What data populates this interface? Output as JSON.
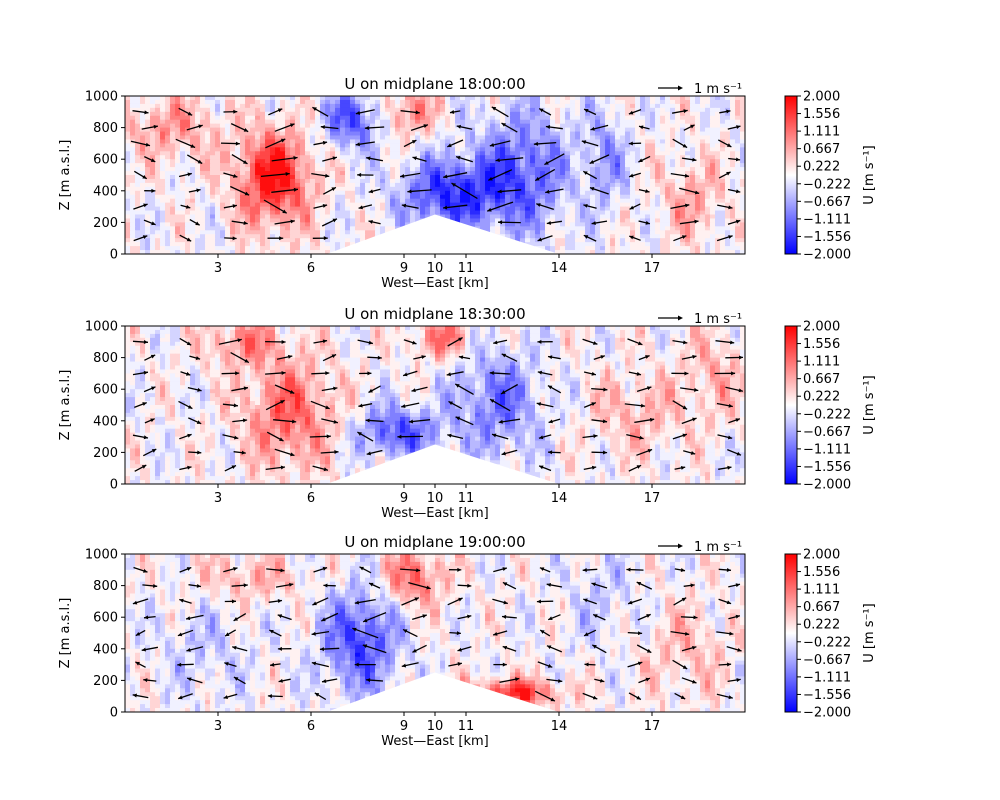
{
  "figure": {
    "colorbar": {
      "label": "U [m s⁻¹]",
      "ticks": [
        "2.000",
        "1.556",
        "1.111",
        "0.667",
        "0.222",
        "−0.222",
        "−0.667",
        "−1.111",
        "−1.556",
        "−2.000"
      ],
      "colors": {
        "negative": "#0000ff",
        "neutral": "#ffffff",
        "positive": "#ff0000"
      }
    },
    "quiver_key_label": "1 m s⁻¹"
  },
  "chart_data": [
    {
      "type": "heatmap",
      "title": "U on midplane 18:00:00",
      "xlabel": "West—East [km]",
      "ylabel": "Z [m a.s.l.]",
      "xlim": [
        0,
        20
      ],
      "ylim": [
        0,
        1000
      ],
      "xticks": [
        3,
        6,
        9,
        10,
        11,
        14,
        17
      ],
      "yticks": [
        0,
        200,
        400,
        600,
        800,
        1000
      ],
      "vlim": [
        -2,
        2
      ],
      "terrain_peak": {
        "x": 10,
        "z": 250,
        "from_x": 6.5,
        "to_x": 14
      },
      "anomalies": [
        {
          "x": 4.8,
          "z": 480,
          "rx": 1.2,
          "rz": 300,
          "u": 1.9
        },
        {
          "x": 1.5,
          "z": 800,
          "rx": 1.5,
          "rz": 200,
          "u": 0.8
        },
        {
          "x": 7.3,
          "z": 850,
          "rx": 0.9,
          "rz": 180,
          "u": -1.4
        },
        {
          "x": 10.5,
          "z": 380,
          "rx": 1.6,
          "rz": 220,
          "u": -1.6
        },
        {
          "x": 12.8,
          "z": 520,
          "rx": 1.5,
          "rz": 380,
          "u": -1.3
        },
        {
          "x": 15.5,
          "z": 600,
          "rx": 0.7,
          "rz": 300,
          "u": -0.8
        },
        {
          "x": 18.3,
          "z": 350,
          "rx": 1.0,
          "rz": 250,
          "u": 0.7
        },
        {
          "x": 9.2,
          "z": 900,
          "rx": 0.8,
          "rz": 150,
          "u": 1.0
        }
      ]
    },
    {
      "type": "heatmap",
      "title": "U on midplane 18:30:00",
      "xlabel": "West—East [km]",
      "ylabel": "Z [m a.s.l.]",
      "xlim": [
        0,
        20
      ],
      "ylim": [
        0,
        1000
      ],
      "xticks": [
        3,
        6,
        9,
        10,
        11,
        14,
        17
      ],
      "yticks": [
        0,
        200,
        400,
        600,
        800,
        1000
      ],
      "vlim": [
        -2,
        2
      ],
      "terrain_peak": {
        "x": 10,
        "z": 250,
        "from_x": 6.5,
        "to_x": 14
      },
      "anomalies": [
        {
          "x": 5.3,
          "z": 450,
          "rx": 1.5,
          "rz": 350,
          "u": 1.2
        },
        {
          "x": 3.8,
          "z": 900,
          "rx": 1.2,
          "rz": 150,
          "u": 0.9
        },
        {
          "x": 8.8,
          "z": 330,
          "rx": 1.3,
          "rz": 160,
          "u": -1.4
        },
        {
          "x": 12.0,
          "z": 520,
          "rx": 1.4,
          "rz": 330,
          "u": -1.1
        },
        {
          "x": 10.2,
          "z": 920,
          "rx": 0.9,
          "rz": 130,
          "u": 1.1
        },
        {
          "x": 16.5,
          "z": 450,
          "rx": 1.5,
          "rz": 250,
          "u": 0.6
        },
        {
          "x": 19.0,
          "z": 700,
          "rx": 1.0,
          "rz": 300,
          "u": 0.6
        }
      ]
    },
    {
      "type": "heatmap",
      "title": "U on midplane 19:00:00",
      "xlabel": "West—East [km]",
      "ylabel": "Z [m a.s.l.]",
      "xlim": [
        0,
        20
      ],
      "ylim": [
        0,
        1000
      ],
      "xticks": [
        3,
        6,
        9,
        10,
        11,
        14,
        17
      ],
      "yticks": [
        0,
        200,
        400,
        600,
        800,
        1000
      ],
      "vlim": [
        -2,
        2
      ],
      "terrain_peak": {
        "x": 10,
        "z": 250,
        "from_x": 6.5,
        "to_x": 14
      },
      "anomalies": [
        {
          "x": 7.6,
          "z": 450,
          "rx": 1.2,
          "rz": 320,
          "u": -1.5
        },
        {
          "x": 9.3,
          "z": 850,
          "rx": 1.0,
          "rz": 180,
          "u": 1.2
        },
        {
          "x": 12.5,
          "z": 120,
          "rx": 1.5,
          "rz": 90,
          "u": 1.6
        },
        {
          "x": 4.0,
          "z": 850,
          "rx": 1.8,
          "rz": 150,
          "u": 0.6
        },
        {
          "x": 2.5,
          "z": 400,
          "rx": 1.5,
          "rz": 300,
          "u": -0.4
        },
        {
          "x": 15.5,
          "z": 700,
          "rx": 1.2,
          "rz": 300,
          "u": -0.4
        },
        {
          "x": 18.0,
          "z": 400,
          "rx": 1.5,
          "rz": 300,
          "u": 0.5
        }
      ]
    }
  ]
}
